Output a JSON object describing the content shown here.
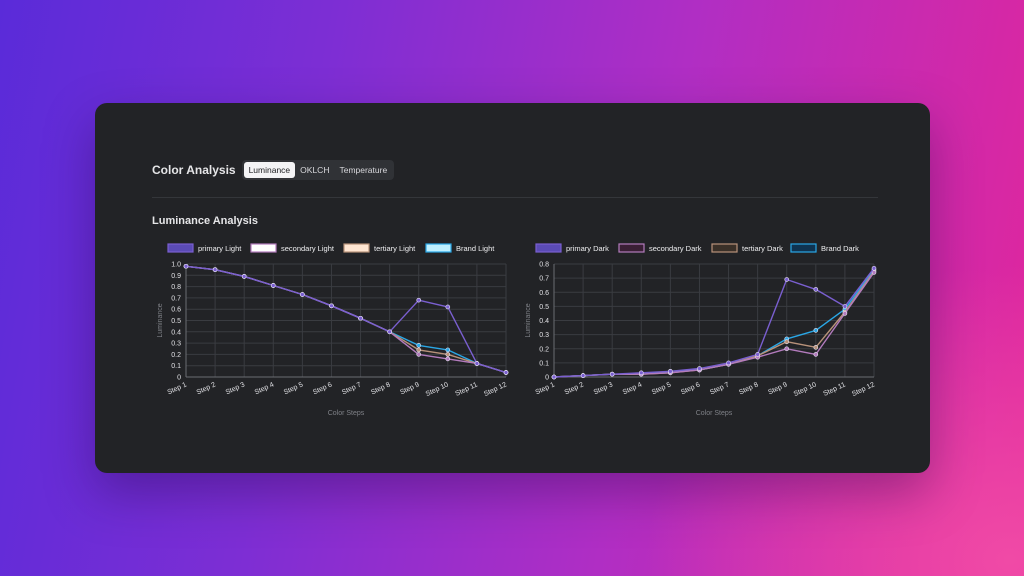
{
  "header": {
    "title": "Color Analysis",
    "tabs": [
      {
        "label": "Luminance",
        "active": true
      },
      {
        "label": "OKLCH",
        "active": false
      },
      {
        "label": "Temperature",
        "active": false
      }
    ]
  },
  "section": {
    "title": "Luminance Analysis"
  },
  "chart_data": [
    {
      "type": "line",
      "title": "",
      "xlabel": "Color Steps",
      "ylabel": "Luminance",
      "ylim": [
        0,
        1.0
      ],
      "yticks": [
        "0",
        "0.1",
        "0.2",
        "0.3",
        "0.4",
        "0.5",
        "0.6",
        "0.7",
        "0.8",
        "0.9",
        "1.0"
      ],
      "x": [
        "Step 1",
        "Step 2",
        "Step 3",
        "Step 4",
        "Step 5",
        "Step 6",
        "Step 7",
        "Step 8",
        "Step 9",
        "Step 10",
        "Step 11",
        "Step 12"
      ],
      "grid": true,
      "legend_position": "top-left",
      "series": [
        {
          "name": "primary Light",
          "color": "#7a5fd0",
          "fill": "#5b4bb5",
          "values": [
            0.98,
            0.95,
            0.89,
            0.81,
            0.73,
            0.63,
            0.52,
            0.4,
            0.68,
            0.62,
            0.12,
            0.04
          ]
        },
        {
          "name": "secondary Light",
          "color": "#b37bbd",
          "fill": "#ffffff",
          "values": [
            0.98,
            0.95,
            0.89,
            0.81,
            0.73,
            0.63,
            0.52,
            0.4,
            0.2,
            0.16,
            0.12,
            0.04
          ]
        },
        {
          "name": "tertiary Light",
          "color": "#b8927a",
          "fill": "#ffe6d2",
          "values": [
            0.98,
            0.95,
            0.89,
            0.81,
            0.73,
            0.63,
            0.52,
            0.4,
            0.24,
            0.2,
            0.12,
            0.04
          ]
        },
        {
          "name": "Brand Light",
          "color": "#2aa7e6",
          "fill": "#bff0ff",
          "values": [
            0.98,
            0.95,
            0.89,
            0.81,
            0.73,
            0.63,
            0.52,
            0.4,
            0.28,
            0.24,
            0.12,
            0.04
          ]
        }
      ]
    },
    {
      "type": "line",
      "title": "",
      "xlabel": "Color Steps",
      "ylabel": "Luminance",
      "ylim": [
        0,
        0.8
      ],
      "yticks": [
        "0",
        "0.1",
        "0.2",
        "0.3",
        "0.4",
        "0.5",
        "0.6",
        "0.7",
        "0.8"
      ],
      "x": [
        "Step 1",
        "Step 2",
        "Step 3",
        "Step 4",
        "Step 5",
        "Step 6",
        "Step 7",
        "Step 8",
        "Step 9",
        "Step 10",
        "Step 11",
        "Step 12"
      ],
      "grid": true,
      "legend_position": "top-left",
      "series": [
        {
          "name": "primary Dark",
          "color": "#7a5fd0",
          "fill": "#5b4bb5",
          "values": [
            0.0,
            0.01,
            0.02,
            0.03,
            0.04,
            0.06,
            0.1,
            0.16,
            0.69,
            0.62,
            0.5,
            0.77
          ]
        },
        {
          "name": "secondary Dark",
          "color": "#b37bbd",
          "fill": "#3a1f35",
          "values": [
            0.0,
            0.01,
            0.02,
            0.02,
            0.03,
            0.05,
            0.09,
            0.14,
            0.2,
            0.16,
            0.45,
            0.74
          ]
        },
        {
          "name": "tertiary Dark",
          "color": "#b8927a",
          "fill": "#3a3028",
          "values": [
            0.0,
            0.01,
            0.02,
            0.02,
            0.03,
            0.05,
            0.09,
            0.15,
            0.25,
            0.21,
            0.46,
            0.75
          ]
        },
        {
          "name": "Brand Dark",
          "color": "#2aa7e6",
          "fill": "#0f3350",
          "values": [
            0.0,
            0.01,
            0.02,
            0.02,
            0.04,
            0.05,
            0.09,
            0.15,
            0.27,
            0.33,
            0.48,
            0.76
          ]
        }
      ]
    }
  ]
}
